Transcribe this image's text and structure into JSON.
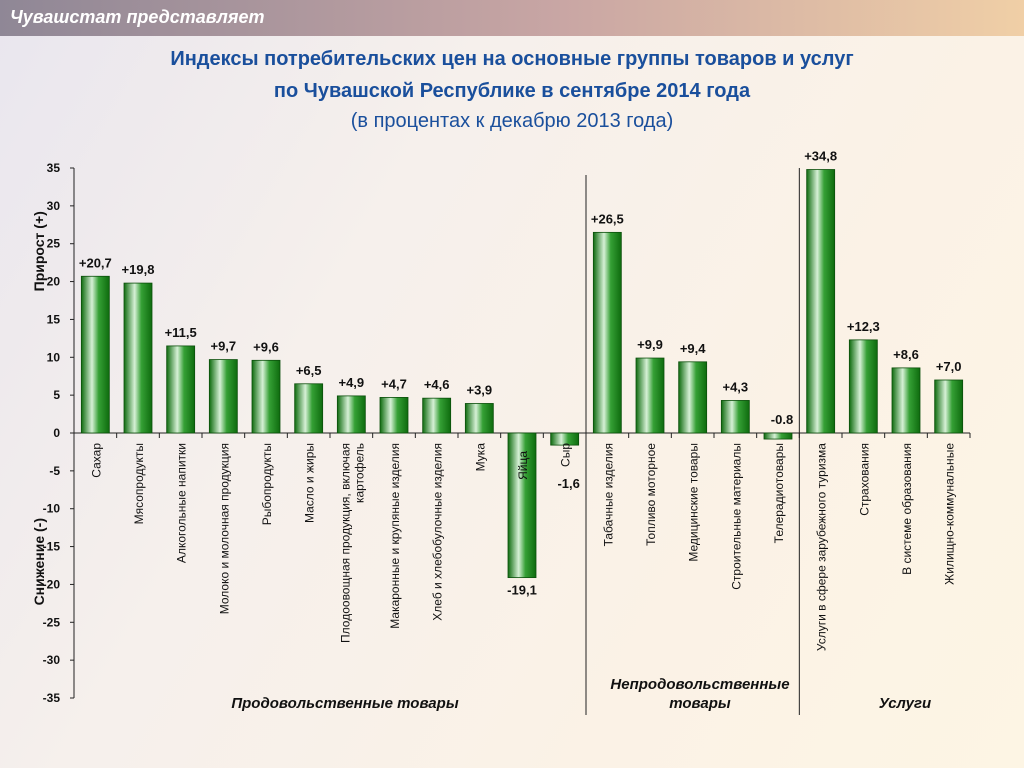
{
  "header": {
    "brand": "Чувашстат представляет"
  },
  "titles": {
    "line1": "Индексы потребительских цен на основные группы товаров и услуг",
    "line2": "по Чувашской Республике в сентябре 2014 года",
    "subtitle": "(в процентах к декабрю 2013 года)"
  },
  "colors": {
    "bar_dark": "#0e6b0e",
    "bar_mid": "#35a035",
    "bar_light": "#d6f0d6",
    "title": "#1a4f9c"
  },
  "groups": {
    "food": "Продовольственные товары",
    "nonfood_line1": "Непродовольственные",
    "nonfood_line2": "товары",
    "services": "Услуги"
  },
  "chart_data": {
    "type": "bar",
    "ylim": [
      -35,
      35
    ],
    "yticks": [
      35,
      30,
      25,
      20,
      15,
      10,
      5,
      0,
      -5,
      -10,
      -15,
      -20,
      -25,
      -30,
      -35
    ],
    "ylabel_positive": "Прирост (+)",
    "ylabel_negative": "Снижение (-)",
    "categories": [
      "Сахар",
      "Мясопродукты",
      "Алкогольные напитки",
      "Молоко и молочная продукция",
      "Рыбопродукты",
      "Масло и жиры",
      "Плодоовощная продукция, включая картофель",
      "Макаронные и крупяные изделия",
      "Хлеб и хлебобулочные изделия",
      "Мука",
      "Яйца",
      "Сыр",
      "Табачные изделия",
      "Топливо моторное",
      "Медицинские товары",
      "Строительные материалы",
      "Телерадиотовары",
      "Услуги в сфере зарубежного туризма",
      "Страхования",
      "В системе образования",
      "Жилищно-коммунальные"
    ],
    "category_lines": [
      [
        "Сахар"
      ],
      [
        "Мясопродукты"
      ],
      [
        "Алкогольные напитки"
      ],
      [
        "Молоко и молочная продукция"
      ],
      [
        "Рыбопродукты"
      ],
      [
        "Масло и жиры"
      ],
      [
        "Плодоовощная продукция, включая",
        "картофель"
      ],
      [
        "Макаронные и крупяные изделия"
      ],
      [
        "Хлеб и хлебобулочные изделия"
      ],
      [
        "Мука"
      ],
      [
        "Яйца"
      ],
      [
        "Сыр"
      ],
      [
        "Табачные изделия"
      ],
      [
        "Топливо моторное"
      ],
      [
        "Медицинские товары"
      ],
      [
        "Строительные материалы"
      ],
      [
        "Телерадиотовары"
      ],
      [
        "Услуги в сфере зарубежного туризма"
      ],
      [
        "Страхования"
      ],
      [
        "В системе образования"
      ],
      [
        "Жилищно-коммунальные"
      ]
    ],
    "values": [
      20.7,
      19.8,
      11.5,
      9.7,
      9.6,
      6.5,
      4.9,
      4.7,
      4.6,
      3.9,
      -19.1,
      -1.6,
      26.5,
      9.9,
      9.4,
      4.3,
      -0.8,
      34.8,
      12.3,
      8.6,
      7.0
    ],
    "data_labels": [
      "+20,7",
      "+19,8",
      "+11,5",
      "+9,7",
      "+9,6",
      "+6,5",
      "+4,9",
      "+4,7",
      "+4,6",
      "+3,9",
      "-19,1",
      "-1,6",
      "+26,5",
      "+9,9",
      "+9,4",
      "+4,3",
      "-0.8",
      "+34,8",
      "+12,3",
      "+8,6",
      "+7,0"
    ]
  }
}
